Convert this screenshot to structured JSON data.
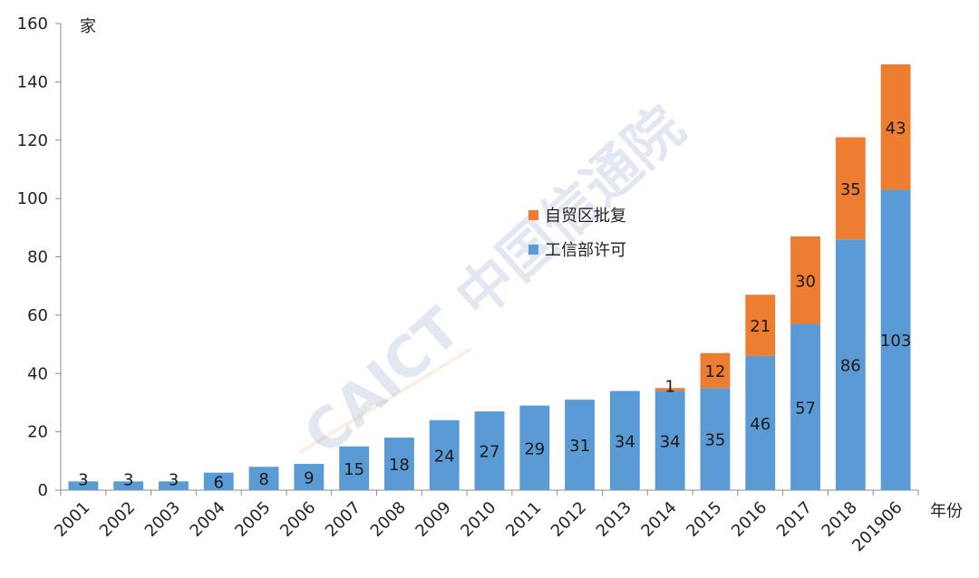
{
  "chart_data": {
    "type": "bar",
    "stacked": true,
    "categories": [
      "2001",
      "2002",
      "2003",
      "2004",
      "2005",
      "2006",
      "2007",
      "2008",
      "2009",
      "2010",
      "2011",
      "2012",
      "2013",
      "2014",
      "2015",
      "2016",
      "2017",
      "2018",
      "201906"
    ],
    "series": [
      {
        "name": "工信部许可",
        "color": "#5b9bd5",
        "values": [
          3,
          3,
          3,
          6,
          8,
          9,
          15,
          18,
          24,
          27,
          29,
          31,
          34,
          34,
          35,
          46,
          57,
          86,
          103
        ],
        "labels": [
          "3",
          "3",
          "3",
          "6",
          "8",
          "9",
          "15",
          "18",
          "24",
          "27",
          "29",
          "31",
          "34",
          "34",
          "35",
          "46",
          "57",
          "86",
          "103"
        ]
      },
      {
        "name": "自贸区批复",
        "color": "#ed7d31",
        "values": [
          0,
          0,
          0,
          0,
          0,
          0,
          0,
          0,
          0,
          0,
          0,
          0,
          0,
          1,
          12,
          21,
          30,
          35,
          43
        ],
        "labels": [
          "",
          "",
          "",
          "",
          "",
          "",
          "",
          "",
          "",
          "",
          "",
          "",
          "",
          "1",
          "12",
          "21",
          "30",
          "35",
          "43"
        ]
      }
    ],
    "ylim": [
      0,
      160
    ],
    "yticks": [
      "0",
      "20",
      "40",
      "60",
      "80",
      "100",
      "120",
      "140",
      "160"
    ],
    "ylabel": "家",
    "xlabel": "年份",
    "legend": [
      "自贸区批复",
      "工信部许可"
    ],
    "legend_position": "center",
    "watermark": "CAICT 中国信通院"
  }
}
